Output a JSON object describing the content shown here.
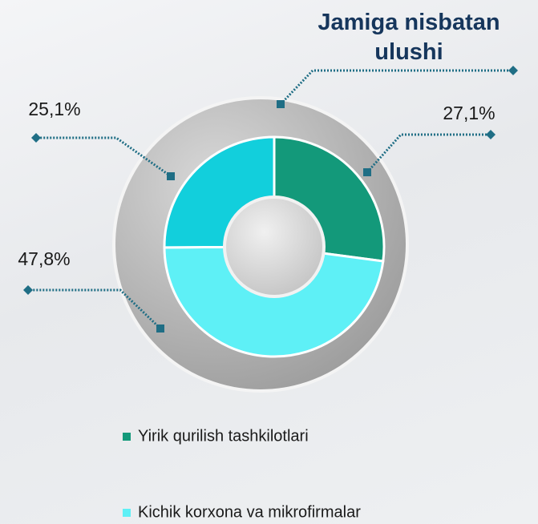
{
  "chart_data": {
    "type": "pie",
    "donut": true,
    "title": "Jamiga nisbatan ulushi",
    "categories": [
      "Yirik qurilish tashkilotlari",
      "Kichik korxona va mikrofirmalar",
      null
    ],
    "values": [
      27.1,
      47.8,
      25.1
    ],
    "value_labels": [
      "27,1%",
      "47,8%",
      "25,1%"
    ],
    "colors": [
      "#13997a",
      "#5ef0f6",
      "#12cfdc"
    ]
  }
}
